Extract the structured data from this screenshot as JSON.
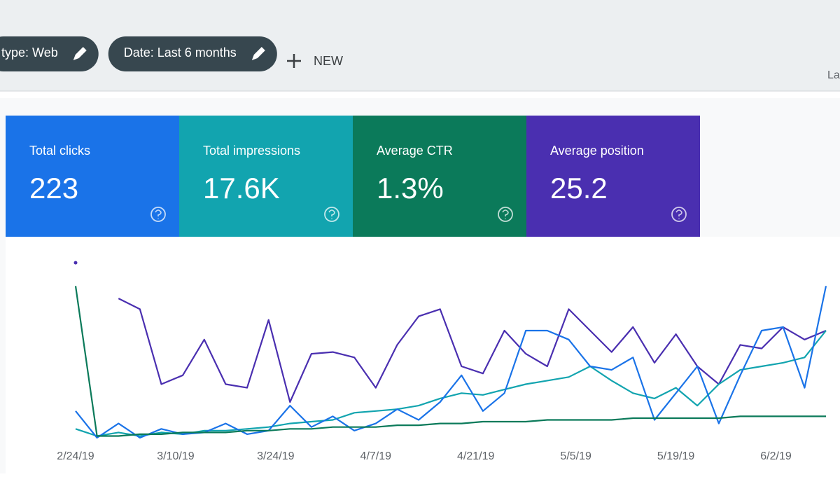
{
  "toolbar": {
    "filters": [
      "type: Web",
      "Date: Last 6 months"
    ],
    "new_button": "NEW",
    "right_label": "La"
  },
  "cards": [
    {
      "title": "Total clicks",
      "value": "223",
      "color": "#1a73e8"
    },
    {
      "title": "Total impressions",
      "value": "17.6K",
      "color": "#12a4af"
    },
    {
      "title": "Average CTR",
      "value": "1.3%",
      "color": "#0b7a5a"
    },
    {
      "title": "Average position",
      "value": "25.2",
      "color": "#4a2fb0"
    }
  ],
  "chart_data": {
    "type": "line",
    "x": [
      0,
      3,
      6,
      9,
      12,
      15,
      18,
      21,
      24,
      27,
      30,
      33,
      36,
      39,
      42,
      45,
      48,
      51,
      54,
      57,
      60,
      63,
      66,
      69,
      72,
      75,
      78,
      81,
      84,
      87,
      90,
      93,
      96,
      99,
      102,
      105
    ],
    "xlim": [
      0,
      105
    ],
    "ylim": [
      0,
      100
    ],
    "xticks": [
      {
        "value": 0,
        "label": "2/24/19"
      },
      {
        "value": 14,
        "label": "3/10/19"
      },
      {
        "value": 28,
        "label": "3/24/19"
      },
      {
        "value": 42,
        "label": "4/7/19"
      },
      {
        "value": 56,
        "label": "4/21/19"
      },
      {
        "value": 70,
        "label": "5/5/19"
      },
      {
        "value": 84,
        "label": "5/19/19"
      },
      {
        "value": 98,
        "label": "6/2/19"
      }
    ],
    "series": [
      {
        "color": "#4a2fb0",
        "values": [
          98,
          null,
          78,
          72,
          30,
          35,
          55,
          30,
          28,
          66,
          20,
          47,
          48,
          45,
          28,
          52,
          68,
          72,
          40,
          36,
          60,
          47,
          40,
          72,
          60,
          48,
          62,
          42,
          58,
          40,
          30,
          52,
          50,
          62,
          55,
          60
        ]
      },
      {
        "color": "#12a4af",
        "values": [
          5,
          1,
          3,
          1,
          3,
          2,
          4,
          4,
          5,
          6,
          8,
          9,
          10,
          14,
          15,
          16,
          18,
          22,
          25,
          24,
          27,
          30,
          32,
          34,
          40,
          32,
          25,
          22,
          28,
          18,
          30,
          38,
          40,
          42,
          45,
          60
        ]
      },
      {
        "color": "#1a73e8",
        "values": [
          15,
          0,
          8,
          0,
          5,
          2,
          3,
          8,
          2,
          4,
          18,
          6,
          12,
          4,
          8,
          16,
          10,
          20,
          35,
          15,
          25,
          60,
          60,
          55,
          40,
          38,
          45,
          10,
          25,
          40,
          8,
          35,
          60,
          62,
          28,
          85
        ]
      },
      {
        "color": "#0b7a5a",
        "values": [
          85,
          1,
          1,
          2,
          2,
          3,
          3,
          3,
          4,
          4,
          5,
          5,
          6,
          6,
          6,
          7,
          7,
          8,
          8,
          9,
          9,
          9,
          10,
          10,
          10,
          10,
          11,
          11,
          11,
          11,
          11,
          12,
          12,
          12,
          12,
          12
        ]
      }
    ]
  }
}
